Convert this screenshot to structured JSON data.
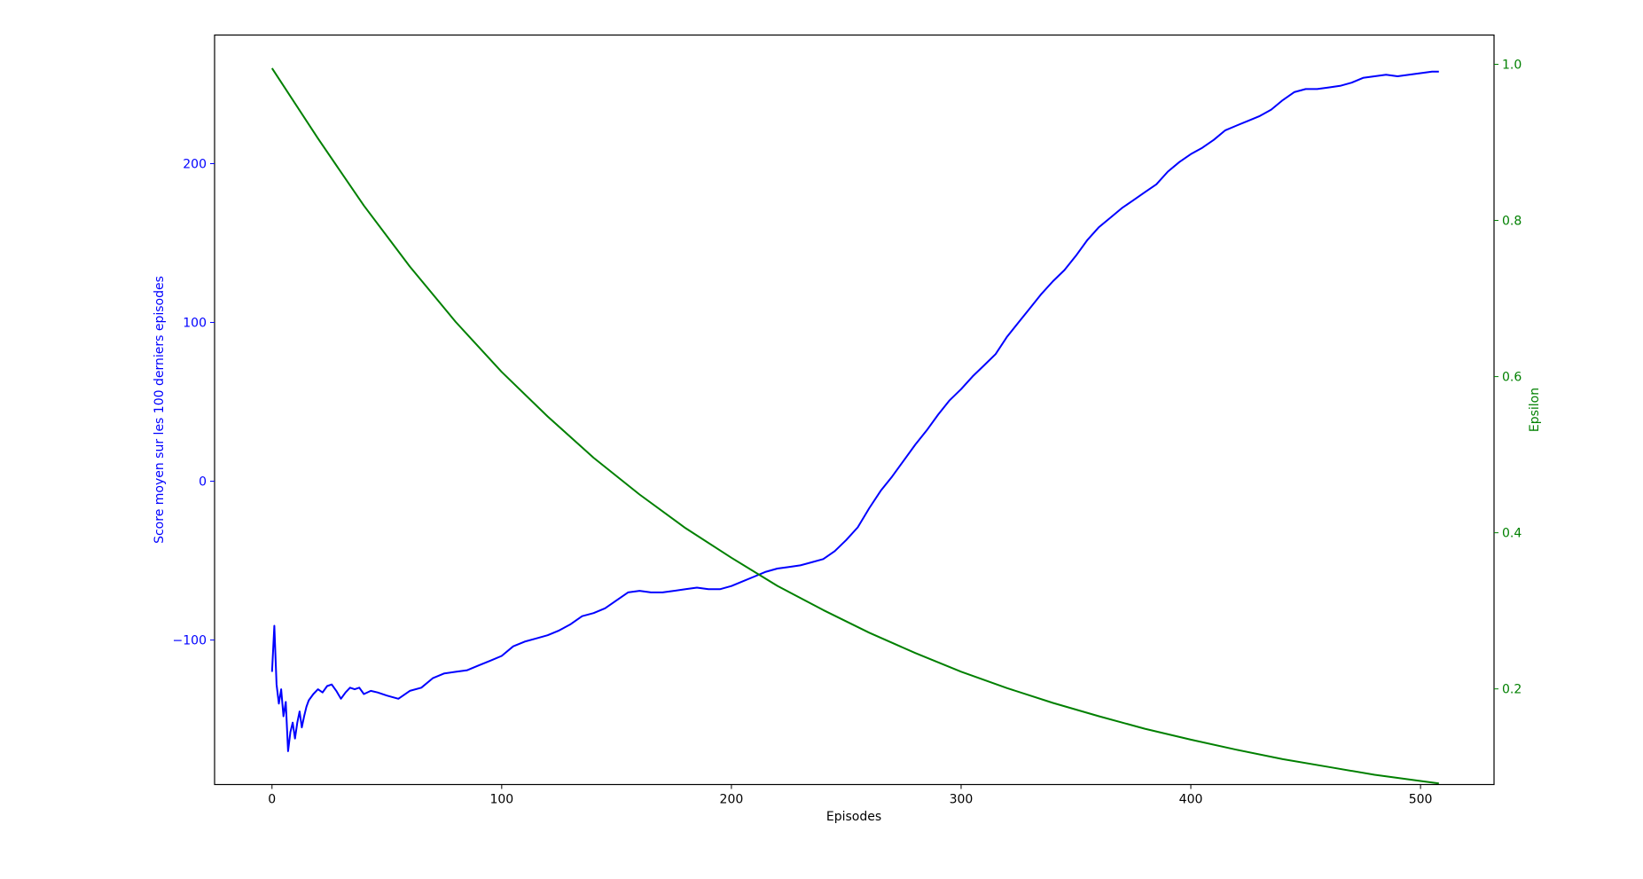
{
  "chart_data": {
    "type": "line",
    "xlabel": "Episodes",
    "ylabel_left": "Score moyen sur les 100 derniers episodes",
    "ylabel_right": "Epsilon",
    "xlim": [
      -25,
      532
    ],
    "ylim_left": [
      -191,
      281
    ],
    "ylim_right": [
      0.0775,
      1.0375
    ],
    "x_ticks": [
      0,
      100,
      200,
      300,
      400,
      500
    ],
    "y_left_ticks": [
      -100,
      0,
      100,
      200
    ],
    "y_right_ticks": [
      0.2,
      0.4,
      0.6,
      0.8,
      1.0
    ],
    "y_right_tick_labels": [
      "0.2",
      "0.4",
      "0.6",
      "0.8",
      "1.0"
    ],
    "y_left_tick_labels": [
      "−100",
      "0",
      "100",
      "200"
    ],
    "grid": false,
    "colors": {
      "score": "#0000ff",
      "epsilon": "#008000",
      "axes": "#000000"
    },
    "series": [
      {
        "axis": "left",
        "color": "#0000ff",
        "x": [
          0,
          1,
          2,
          3,
          4,
          5,
          6,
          7,
          8,
          9,
          10,
          11,
          12,
          13,
          14,
          15,
          16,
          18,
          20,
          22,
          24,
          26,
          28,
          30,
          32,
          34,
          36,
          38,
          40,
          43,
          46,
          50,
          55,
          60,
          65,
          70,
          75,
          80,
          85,
          90,
          95,
          100,
          105,
          110,
          115,
          120,
          125,
          130,
          135,
          140,
          145,
          150,
          155,
          160,
          165,
          170,
          175,
          180,
          185,
          190,
          195,
          200,
          205,
          210,
          215,
          220,
          225,
          230,
          235,
          240,
          245,
          250,
          255,
          260,
          265,
          270,
          275,
          280,
          285,
          290,
          295,
          300,
          305,
          310,
          315,
          320,
          325,
          330,
          335,
          340,
          345,
          350,
          355,
          360,
          365,
          370,
          375,
          380,
          385,
          390,
          395,
          400,
          405,
          410,
          415,
          420,
          425,
          430,
          435,
          440,
          445,
          450,
          455,
          460,
          465,
          470,
          475,
          480,
          485,
          490,
          495,
          500,
          505,
          508
        ],
        "y": [
          -120,
          -91,
          -128,
          -140,
          -131,
          -148,
          -139,
          -170,
          -158,
          -152,
          -162,
          -152,
          -145,
          -155,
          -148,
          -142,
          -138,
          -134,
          -131,
          -133,
          -129,
          -128,
          -132,
          -137,
          -133,
          -130,
          -131,
          -130,
          -134,
          -132,
          -133,
          -135,
          -137,
          -132,
          -130,
          -124,
          -121,
          -120,
          -119,
          -116,
          -113,
          -110,
          -104,
          -101,
          -99,
          -97,
          -94,
          -90,
          -85,
          -83,
          -80,
          -75,
          -70,
          -69,
          -70,
          -70,
          -69,
          -68,
          -67,
          -68,
          -68,
          -66,
          -63,
          -60,
          -57,
          -55,
          -54,
          -53,
          -51,
          -49,
          -44,
          -37,
          -29,
          -17,
          -6,
          3,
          13,
          23,
          32,
          42,
          51,
          58,
          66,
          73,
          80,
          91,
          100,
          109,
          118,
          126,
          133,
          142,
          152,
          160,
          166,
          172,
          177,
          182,
          187,
          195,
          201,
          206,
          210,
          215,
          221,
          224,
          227,
          230,
          234,
          240,
          245,
          247,
          247,
          248,
          249,
          251,
          254,
          255,
          256,
          255,
          256,
          257,
          258,
          258
        ]
      },
      {
        "axis": "right",
        "color": "#008000",
        "x": [
          0,
          20,
          40,
          60,
          80,
          100,
          120,
          140,
          160,
          180,
          200,
          220,
          240,
          260,
          280,
          300,
          320,
          340,
          360,
          380,
          400,
          420,
          440,
          460,
          480,
          500,
          508
        ],
        "y": [
          0.995,
          0.905,
          0.819,
          0.741,
          0.67,
          0.606,
          0.549,
          0.496,
          0.449,
          0.406,
          0.368,
          0.332,
          0.301,
          0.272,
          0.246,
          0.222,
          0.201,
          0.182,
          0.165,
          0.149,
          0.135,
          0.122,
          0.11,
          0.1,
          0.09,
          0.082,
          0.079
        ]
      }
    ]
  }
}
